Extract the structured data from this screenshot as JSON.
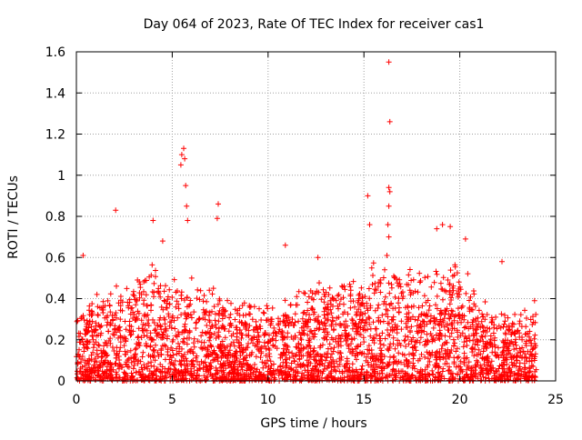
{
  "chart_data": {
    "type": "scatter",
    "title": "Day 064 of 2023, Rate Of TEC Index for receiver cas1",
    "xlabel": "GPS time / hours",
    "ylabel": "ROTI / TECUs",
    "xlim": [
      0,
      25
    ],
    "ylim": [
      0,
      1.6
    ],
    "xticks": [
      0,
      5,
      10,
      15,
      20,
      25
    ],
    "xtick_labels": [
      "0",
      "5",
      "10",
      "15",
      "20",
      "25"
    ],
    "yticks": [
      0,
      0.2,
      0.4,
      0.6,
      0.8,
      1.0,
      1.2,
      1.4,
      1.6
    ],
    "ytick_labels": [
      "0",
      "0.2",
      "0.4",
      "0.6",
      "0.8",
      "1",
      "1.2",
      "1.4",
      "1.6"
    ],
    "grid": true,
    "marker": "+",
    "color": "#ff0000",
    "series": [
      {
        "name": "ROTI",
        "notable_points": [
          {
            "x": 0.35,
            "y": 0.61
          },
          {
            "x": 2.05,
            "y": 0.83
          },
          {
            "x": 4.0,
            "y": 0.78
          },
          {
            "x": 4.5,
            "y": 0.68
          },
          {
            "x": 5.45,
            "y": 1.05
          },
          {
            "x": 5.5,
            "y": 1.1
          },
          {
            "x": 5.6,
            "y": 1.13
          },
          {
            "x": 5.65,
            "y": 1.08
          },
          {
            "x": 5.7,
            "y": 0.95
          },
          {
            "x": 5.75,
            "y": 0.85
          },
          {
            "x": 5.8,
            "y": 0.78
          },
          {
            "x": 7.4,
            "y": 0.86
          },
          {
            "x": 7.35,
            "y": 0.79
          },
          {
            "x": 10.9,
            "y": 0.66
          },
          {
            "x": 12.6,
            "y": 0.6
          },
          {
            "x": 15.2,
            "y": 0.9
          },
          {
            "x": 15.3,
            "y": 0.76
          },
          {
            "x": 16.3,
            "y": 1.55
          },
          {
            "x": 16.35,
            "y": 1.26
          },
          {
            "x": 16.3,
            "y": 0.94
          },
          {
            "x": 16.35,
            "y": 0.92
          },
          {
            "x": 16.3,
            "y": 0.85
          },
          {
            "x": 16.25,
            "y": 0.76
          },
          {
            "x": 16.3,
            "y": 0.7
          },
          {
            "x": 16.2,
            "y": 0.61
          },
          {
            "x": 18.8,
            "y": 0.74
          },
          {
            "x": 19.1,
            "y": 0.76
          },
          {
            "x": 19.5,
            "y": 0.75
          },
          {
            "x": 20.3,
            "y": 0.69
          },
          {
            "x": 22.2,
            "y": 0.58
          },
          {
            "x": 23.9,
            "y": 0.39
          }
        ],
        "dense_band": {
          "x_range": [
            0.0,
            24.0
          ],
          "typical_max": [
            [
              0,
              0.3
            ],
            [
              1,
              0.35
            ],
            [
              2,
              0.4
            ],
            [
              3,
              0.45
            ],
            [
              4,
              0.5
            ],
            [
              5,
              0.45
            ],
            [
              6,
              0.45
            ],
            [
              7,
              0.4
            ],
            [
              8,
              0.32
            ],
            [
              9,
              0.34
            ],
            [
              10,
              0.32
            ],
            [
              11,
              0.36
            ],
            [
              12,
              0.4
            ],
            [
              13,
              0.42
            ],
            [
              14,
              0.45
            ],
            [
              15,
              0.48
            ],
            [
              16,
              0.5
            ],
            [
              17,
              0.5
            ],
            [
              18,
              0.48
            ],
            [
              19,
              0.5
            ],
            [
              20,
              0.5
            ],
            [
              21,
              0.35
            ],
            [
              22,
              0.32
            ],
            [
              23,
              0.3
            ],
            [
              24,
              0.3
            ]
          ],
          "typical_min": 0.0
        }
      }
    ]
  }
}
